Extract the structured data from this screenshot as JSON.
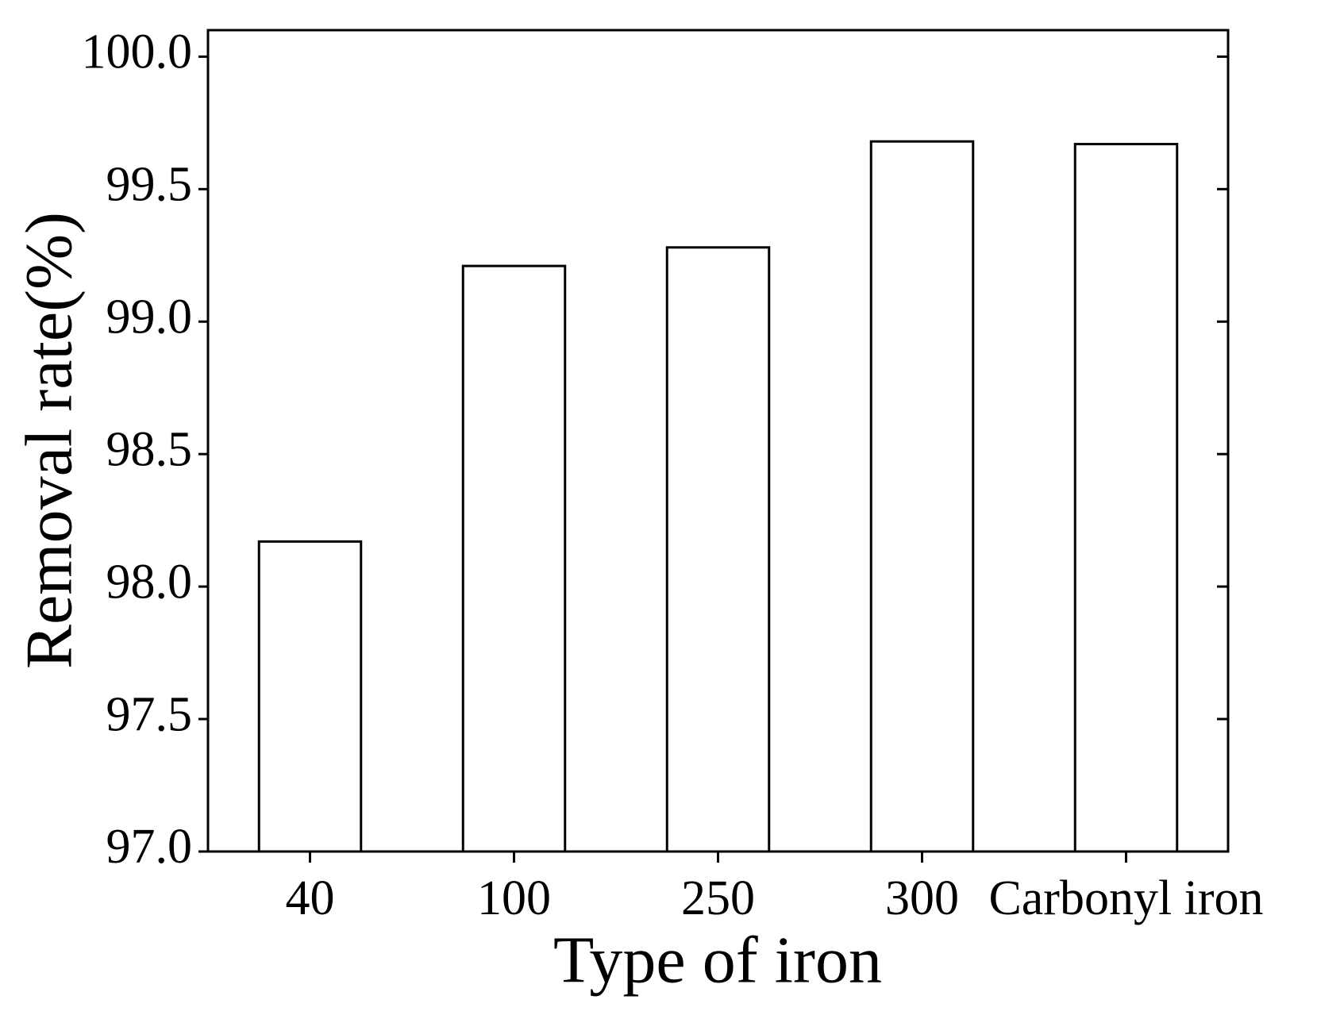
{
  "chart_data": {
    "type": "bar",
    "xlabel": "Type of iron",
    "ylabel": "Removal rate(%)",
    "categories": [
      "40",
      "100",
      "250",
      "300",
      "Carbonyl iron"
    ],
    "values": [
      98.17,
      99.21,
      99.28,
      99.68,
      99.67
    ],
    "color": "#ffffff",
    "ylim": [
      97,
      100.1
    ],
    "yticks": [
      {
        "value": 97,
        "label": "97.0"
      },
      97.5,
      {
        "value": 98,
        "label": "98.0"
      },
      98.5,
      {
        "value": 99,
        "label": "99.0"
      },
      99.5,
      {
        "value": 100,
        "label": "100.0"
      }
    ],
    "grid": false
  }
}
